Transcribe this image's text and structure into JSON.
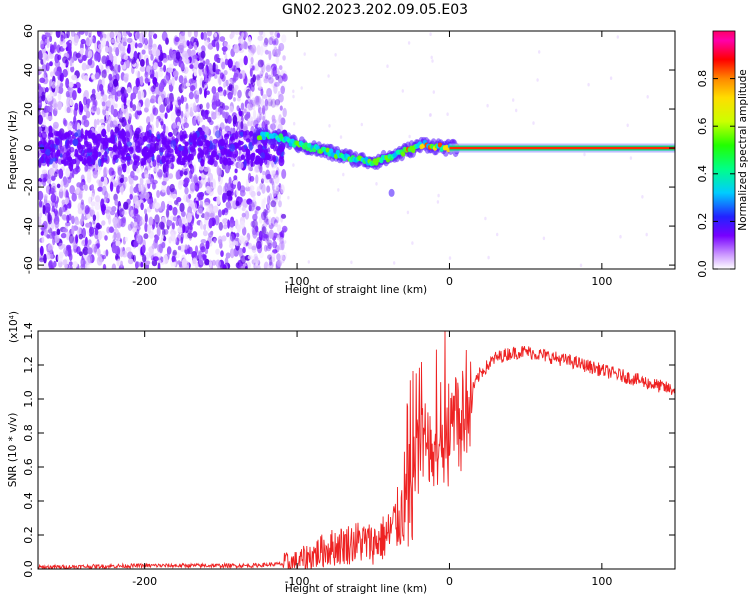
{
  "title": "GN02.2023.202.09.05.E03",
  "chart_data": [
    {
      "type": "heatmap",
      "xlabel": "Height of straight line (km)",
      "ylabel": "Frequency (Hz)",
      "xlim": [
        -270,
        148
      ],
      "ylim": [
        -62,
        60
      ],
      "xticks": [
        -200,
        -100,
        0,
        100
      ],
      "xtick_labels": [
        "-200",
        "-100",
        "0",
        "100"
      ],
      "yticks": [
        60,
        40,
        20,
        0,
        -20,
        -40,
        -60
      ],
      "ytick_labels": [
        "60",
        "40",
        "20",
        "0",
        "-20",
        "-40",
        "-60"
      ],
      "colorbar": {
        "label": "Normalized spectral amplitude",
        "range": [
          0,
          1
        ],
        "ticks": [
          0.0,
          0.2,
          0.4,
          0.6,
          0.8
        ],
        "tick_labels": [
          "0.0",
          "0.2",
          "0.4",
          "0.6",
          "0.8"
        ]
      },
      "frequency_track": {
        "x": [
          -120,
          -110,
          -100,
          -90,
          -80,
          -70,
          -60,
          -50,
          -40,
          -30,
          -20,
          -15,
          -10,
          0,
          148
        ],
        "y": [
          6,
          5,
          2,
          0,
          -2,
          -4,
          -6,
          -7,
          -5,
          -2,
          1,
          2,
          1,
          0,
          0
        ]
      },
      "grid": false
    },
    {
      "type": "line",
      "xlabel": "Height of straight line (km)",
      "ylabel": "SNR (10 * v/v)",
      "y_scale_note": "(x10⁴)",
      "xlim": [
        -270,
        148
      ],
      "ylim": [
        0,
        1.4
      ],
      "xticks": [
        -200,
        -100,
        0,
        100
      ],
      "xtick_labels": [
        "-200",
        "-100",
        "0",
        "100"
      ],
      "yticks": [
        0.0,
        0.2,
        0.4,
        0.6,
        0.8,
        1.0,
        1.2,
        1.4
      ],
      "ytick_labels": [
        "0.0",
        "0.2",
        "0.4",
        "0.6",
        "0.8",
        "1.0",
        "1.2",
        "1.4"
      ],
      "series": [
        {
          "color": "#ee2222",
          "x": [
            -270,
            -200,
            -130,
            -110,
            -100,
            -90,
            -80,
            -70,
            -60,
            -50,
            -40,
            -30,
            -25,
            -20,
            -15,
            -10,
            -5,
            0,
            10,
            20,
            30,
            40,
            50,
            60,
            80,
            100,
            120,
            148
          ],
          "y": [
            0.01,
            0.02,
            0.02,
            0.03,
            0.04,
            0.08,
            0.12,
            0.14,
            0.16,
            0.15,
            0.2,
            0.35,
            0.5,
            0.65,
            0.7,
            0.75,
            0.8,
            0.85,
            0.95,
            1.15,
            1.24,
            1.27,
            1.28,
            1.26,
            1.22,
            1.17,
            1.12,
            1.05
          ]
        }
      ],
      "grid": false
    }
  ]
}
